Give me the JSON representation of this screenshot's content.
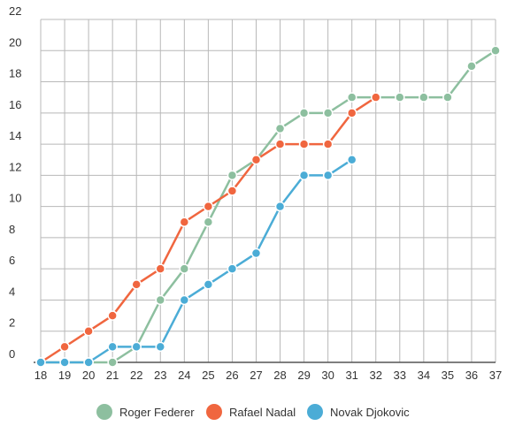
{
  "chart_data": {
    "type": "line",
    "title": "",
    "xlabel": "",
    "ylabel": "",
    "x": [
      18,
      19,
      20,
      21,
      22,
      23,
      24,
      25,
      26,
      27,
      28,
      29,
      30,
      31,
      32,
      33,
      34,
      35,
      36,
      37
    ],
    "xlim": [
      18,
      37
    ],
    "ylim": [
      0,
      22
    ],
    "y_ticks": [
      0,
      2,
      4,
      6,
      8,
      10,
      12,
      14,
      16,
      18,
      20,
      22
    ],
    "grid": true,
    "legend_position": "bottom",
    "series": [
      {
        "name": "Roger Federer",
        "color": "#8dbf9f",
        "values": [
          0,
          0,
          0,
          0,
          1,
          4,
          6,
          9,
          12,
          13,
          15,
          16,
          16,
          17,
          17,
          17,
          17,
          17,
          19,
          20
        ]
      },
      {
        "name": "Rafael Nadal",
        "color": "#f0663f",
        "values": [
          0,
          1,
          2,
          3,
          5,
          6,
          9,
          10,
          11,
          13,
          14,
          14,
          14,
          16,
          17,
          null,
          null,
          null,
          null,
          null
        ]
      },
      {
        "name": "Novak Djokovic",
        "color": "#4bacd6",
        "values": [
          0,
          0,
          0,
          1,
          1,
          1,
          4,
          5,
          6,
          7,
          10,
          12,
          12,
          13,
          null,
          null,
          null,
          null,
          null,
          null
        ]
      }
    ]
  }
}
